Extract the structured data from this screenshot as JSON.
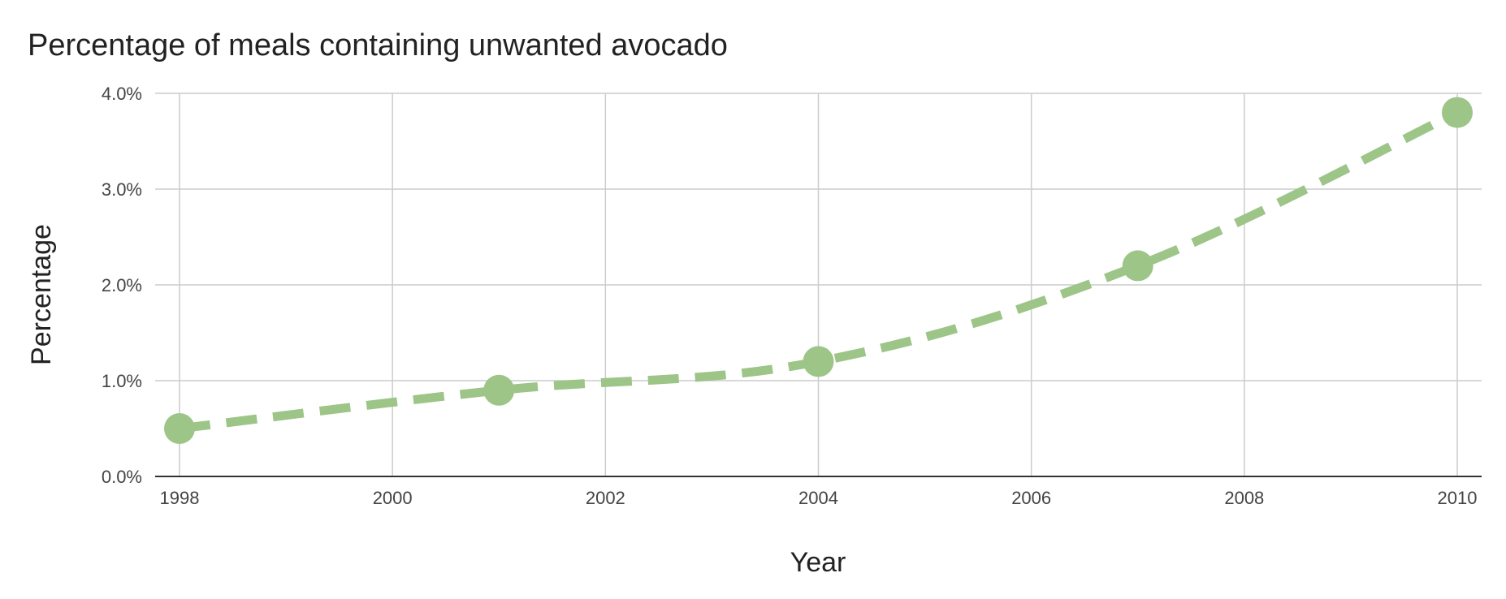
{
  "chart_data": {
    "type": "line",
    "title": "Percentage of meals containing unwanted avocado",
    "xlabel": "Year",
    "ylabel": "Percentage",
    "xlim": [
      1998,
      2010
    ],
    "ylim": [
      0,
      4.0
    ],
    "x_ticks": [
      1998,
      2000,
      2002,
      2004,
      2006,
      2008,
      2010
    ],
    "x_tick_labels": [
      "1998",
      "2000",
      "2002",
      "2004",
      "2006",
      "2008",
      "2010"
    ],
    "y_ticks": [
      0,
      1.0,
      2.0,
      3.0,
      4.0
    ],
    "y_tick_labels": [
      "0.0%",
      "1.0%",
      "2.0%",
      "3.0%",
      "4.0%"
    ],
    "grid": true,
    "line_style": "dashed",
    "line_color": "#9cc587",
    "marker_color": "#9cc587",
    "series": [
      {
        "x": [
          1998,
          2001,
          2004,
          2007,
          2010
        ],
        "values": [
          0.5,
          0.9,
          1.2,
          2.2,
          3.8
        ]
      }
    ]
  }
}
